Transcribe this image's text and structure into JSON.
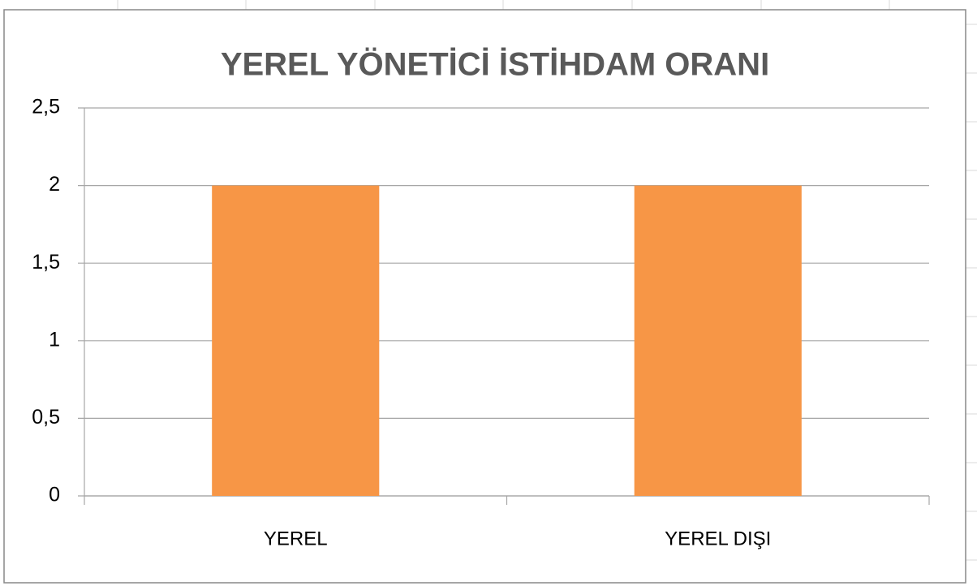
{
  "chart_data": {
    "type": "bar",
    "title": "YEREL YÖNETİCİ İSTİHDAM ORANI",
    "categories": [
      "YEREL",
      "YEREL DIŞI"
    ],
    "values": [
      2,
      2
    ],
    "color": "#f79646",
    "ylim": [
      0,
      2.5
    ],
    "yticks": [
      0,
      {
        "value": 0.5,
        "label": "0,5"
      },
      1,
      {
        "value": 1.5,
        "label": "1,5"
      },
      2,
      {
        "value": 2.5,
        "label": "2,5"
      }
    ],
    "grid": true
  }
}
